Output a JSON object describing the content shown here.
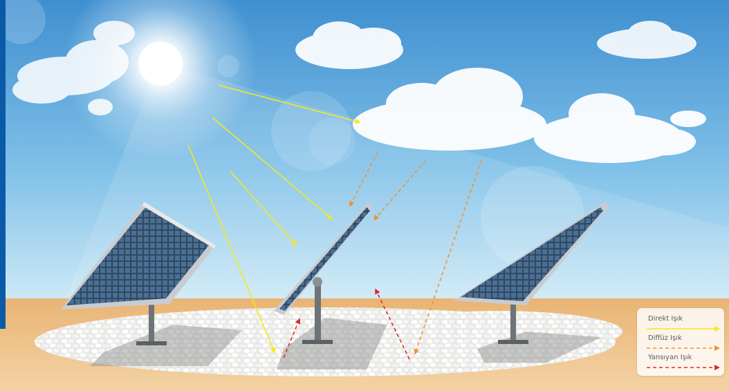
{
  "colors": {
    "direct": "#f2ea1c",
    "diffuse": "#f0922c",
    "reflected": "#e0262b",
    "sky_top": "#3f8fd0",
    "sky_bottom": "#cfeaf6",
    "sand": "#ebbd80",
    "side_bar": "#0a5aa8"
  },
  "icons": [
    "sun-icon",
    "cloud-icon",
    "solar-panel-icon",
    "pebble-field-icon"
  ],
  "legend": {
    "items": [
      {
        "key": "direct",
        "label": "Direkt Işık",
        "style": "solid"
      },
      {
        "key": "diffuse",
        "label": "Diffüz Işık",
        "style": "dashed"
      },
      {
        "key": "reflected",
        "label": "Yansıyan Işık",
        "style": "dashed"
      }
    ]
  }
}
